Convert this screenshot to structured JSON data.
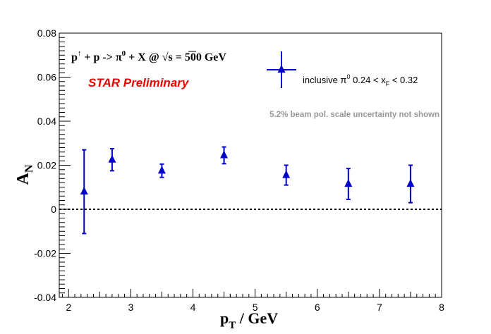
{
  "chart_data": {
    "type": "scatter",
    "xlim": [
      1.85,
      8
    ],
    "ylim": [
      -0.04,
      0.08
    ],
    "x_ticks": [
      2,
      3,
      4,
      5,
      6,
      7,
      8
    ],
    "y_ticks": [
      -0.04,
      -0.02,
      0,
      0.02,
      0.04,
      0.06,
      0.08
    ],
    "x_tick_labels": [
      "2",
      "3",
      "4",
      "5",
      "6",
      "7",
      "8"
    ],
    "y_tick_labels": [
      "-0.04",
      "-0.02",
      "0",
      "0.02",
      "0.04",
      "0.06",
      "0.08"
    ],
    "series": [
      {
        "name": "inclusive π0 0.24 < xF < 0.32",
        "color": "#0000cc",
        "marker": "triangle-up",
        "points": [
          {
            "x": 2.25,
            "y": 0.008,
            "err": 0.019
          },
          {
            "x": 2.7,
            "y": 0.0225,
            "err": 0.005
          },
          {
            "x": 3.5,
            "y": 0.0175,
            "err": 0.003
          },
          {
            "x": 4.5,
            "y": 0.0245,
            "err": 0.0038
          },
          {
            "x": 5.5,
            "y": 0.0155,
            "err": 0.0045
          },
          {
            "x": 6.5,
            "y": 0.0115,
            "err": 0.007
          },
          {
            "x": 7.5,
            "y": 0.0115,
            "err": 0.0085
          }
        ]
      }
    ],
    "reference_line": {
      "y": 0,
      "style": "dotted"
    },
    "grid": false,
    "legend_position": "top-right"
  },
  "labels": {
    "x_axis": {
      "main": "p",
      "sub": "T",
      "rest": " / GeV"
    },
    "y_axis": {
      "main": "A",
      "sub": "N"
    },
    "reaction": {
      "p1": "p",
      "sup_arrow": "↑",
      "middle": " + p ->  π",
      "sup_zero": "0",
      "tail": " + X @  ",
      "sqrt_sign": "√",
      "sqrt_arg": "s",
      "energy": " = 500 GeV"
    },
    "preliminary": "STAR Preliminary",
    "legend": {
      "prefix": "inclusive π",
      "sup": "0",
      "mid": " 0.24 < x",
      "sub": "F",
      "suffix": " < 0.32"
    },
    "note": "5.2% beam pol. scale uncertainty not shown"
  },
  "colors": {
    "marker": "#0000cc",
    "preliminary": "#ee0000",
    "note": "#999999",
    "axis": "#000000"
  }
}
